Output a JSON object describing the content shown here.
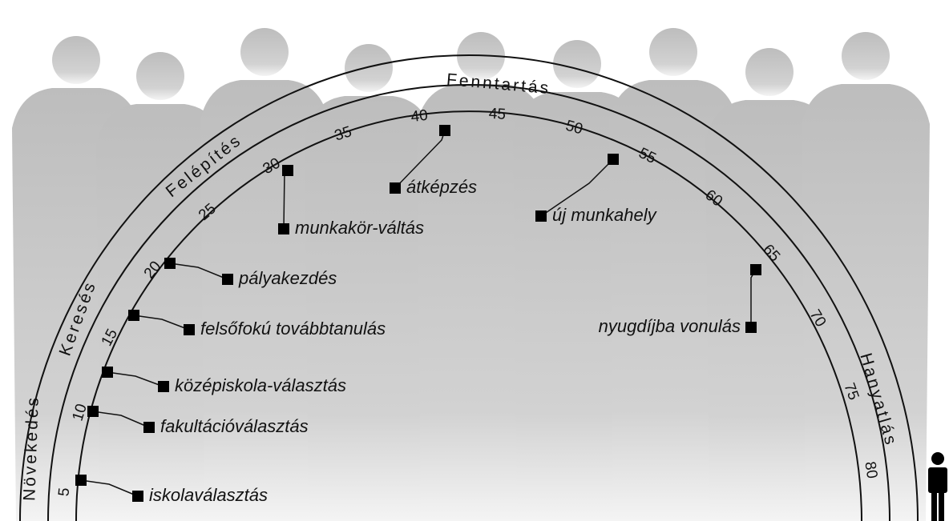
{
  "stages": [
    "Növekedés",
    "Keresés",
    "Felépítés",
    "Fenntartás",
    "Hanyatlás"
  ],
  "ages": [
    5,
    10,
    15,
    20,
    25,
    30,
    35,
    40,
    45,
    50,
    55,
    60,
    65,
    70,
    75,
    80
  ],
  "events": [
    "iskolaválasztás",
    "fakultációválasztás",
    "középiskola-választás",
    "felsőfokú továbbtanulás",
    "pályakezdés",
    "munkakör-váltás",
    "átképzés",
    "új munkahely",
    "nyugdíjba vonulás"
  ]
}
